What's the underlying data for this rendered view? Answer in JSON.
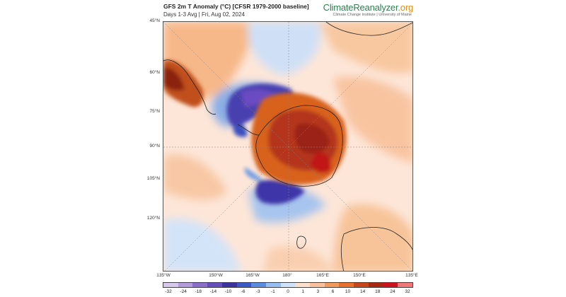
{
  "header": {
    "title": "GFS 2m T Anomaly (°C) [CFSR 1979-2000 baseline]",
    "subtitle": "Days 1-3 Avg | Fri, Aug 02, 2024",
    "brand_main": "ClimateReanalyzer",
    "brand_tld": ".org",
    "brand_sub": "Climate Change Institute | University of Maine"
  },
  "map": {
    "projection": "south-polar stereographic",
    "latitude_labels": [
      "45°N",
      "60°N",
      "75°N",
      "90°N",
      "105°N",
      "120°N"
    ],
    "longitude_labels": [
      "135°W",
      "150°W",
      "165°W",
      "180°",
      "165°E",
      "150°E",
      "135°E"
    ],
    "regions": [
      {
        "name": "antarctica",
        "anomaly_c": 18
      },
      {
        "name": "ross-sea-cold-anomaly",
        "anomaly_c": -12
      },
      {
        "name": "weddell-sea-cold-anomaly",
        "anomaly_c": -10
      },
      {
        "name": "south-america-warm-anomaly",
        "anomaly_c": 6
      },
      {
        "name": "australia-warm-anomaly",
        "anomaly_c": 3
      }
    ]
  },
  "colorbar": {
    "ticks": [
      "-32",
      "-24",
      "-18",
      "-14",
      "-10",
      "-6",
      "-3",
      "-1",
      "0",
      "1",
      "3",
      "6",
      "10",
      "14",
      "18",
      "24",
      "32"
    ],
    "colors": [
      "#d6c8ec",
      "#b49cdc",
      "#8c6fcc",
      "#6450b8",
      "#3c32a0",
      "#3a5ac8",
      "#5a8ce0",
      "#96bef0",
      "#cfe2f8",
      "#fbe0cc",
      "#f8c09a",
      "#f29a5c",
      "#e6702c",
      "#c8461c",
      "#a82814",
      "#d0121e",
      "#f07878"
    ]
  }
}
